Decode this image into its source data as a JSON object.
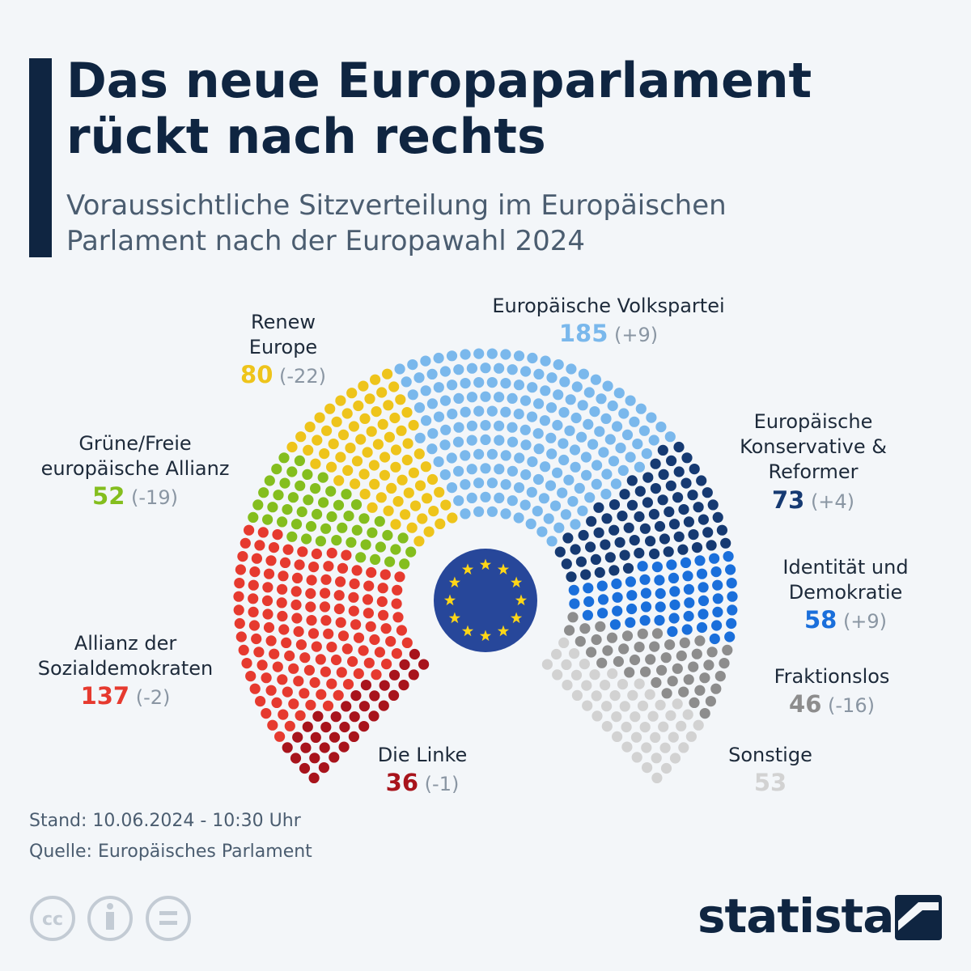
{
  "chart_data": {
    "type": "parliament",
    "title": "Das neue Europaparlament rückt nach rechts",
    "subtitle": "Voraussichtliche Sitzverteilung im Europäischen Parlament nach der Europawahl 2024",
    "series": [
      {
        "name": "Die Linke",
        "color": "#a8141c",
        "value": 36,
        "change": "(-1)"
      },
      {
        "name": "Allianz der Sozialdemokraten",
        "color": "#e63a2f",
        "value": 137,
        "change": "(-2)"
      },
      {
        "name": "Grüne/Freie europäische Allianz",
        "color": "#84be1e",
        "value": 52,
        "change": "(-19)"
      },
      {
        "name": "Renew Europe",
        "color": "#eec41b",
        "value": 80,
        "change": "(-22)"
      },
      {
        "name": "Europäische Volkspartei",
        "color": "#7ab8ec",
        "value": 185,
        "change": "(+9)"
      },
      {
        "name": "Europäische Konservative & Reformer",
        "color": "#163a72",
        "value": 73,
        "change": "(+4)"
      },
      {
        "name": "Identität und Demokratie",
        "color": "#1a6fdb",
        "value": 58,
        "change": "(+9)"
      },
      {
        "name": "Fraktionslos",
        "color": "#8d8d8d",
        "value": 46,
        "change": "(-16)"
      },
      {
        "name": "Sonstige",
        "color": "#d2d2d2",
        "value": 53
      }
    ],
    "stand": "Stand: 10.06.2024 - 10:30 Uhr",
    "source": "Quelle: Europäisches Parlament",
    "brand": "statista"
  }
}
